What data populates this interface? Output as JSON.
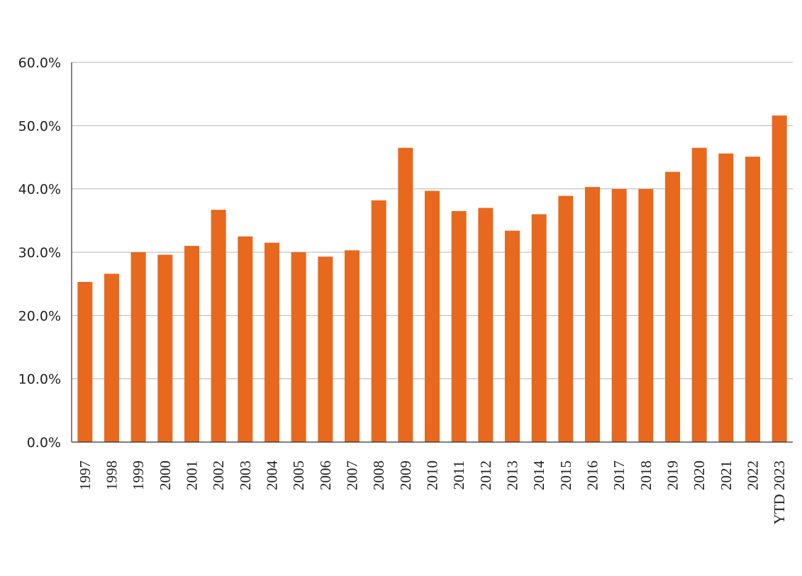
{
  "chart_data": {
    "type": "bar",
    "title": "",
    "xlabel": "",
    "ylabel": "",
    "ylim": [
      0,
      60
    ],
    "yticks": [
      0,
      10,
      20,
      30,
      40,
      50,
      60
    ],
    "ytick_labels": [
      "0.0%",
      "10.0%",
      "20.0%",
      "30.0%",
      "40.0%",
      "50.0%",
      "60.0%"
    ],
    "grid": true,
    "legend": "none",
    "bar_color": "#E8681E",
    "categories": [
      "1997",
      "1998",
      "1999",
      "2000",
      "2001",
      "2002",
      "2003",
      "2004",
      "2005",
      "2006",
      "2007",
      "2008",
      "2009",
      "2010",
      "2011",
      "2012",
      "2013",
      "2014",
      "2015",
      "2016",
      "2017",
      "2018",
      "2019",
      "2020",
      "2021",
      "2022",
      "YTD 2023"
    ],
    "values": [
      25.3,
      26.6,
      30.0,
      29.6,
      31.0,
      36.7,
      32.5,
      31.5,
      30.0,
      29.3,
      30.3,
      38.2,
      46.5,
      39.7,
      36.5,
      37.0,
      33.4,
      36.0,
      38.9,
      40.3,
      40.0,
      40.0,
      42.7,
      46.5,
      45.6,
      45.1,
      51.6
    ]
  }
}
